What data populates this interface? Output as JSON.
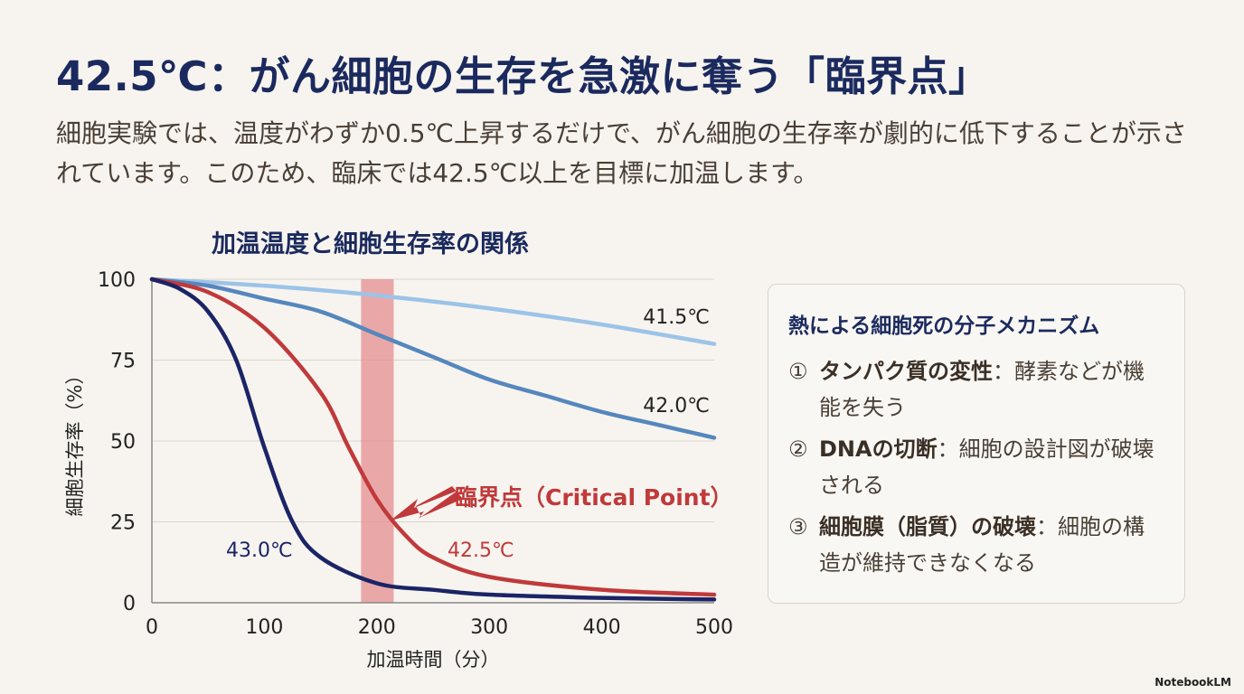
{
  "title": "42.5℃：がん細胞の生存を急激に奪う「臨界点」",
  "subtitle": "細胞実験では、温度がわずか0.5℃上昇するだけで、がん細胞の生存率が劇的に低下することが示されています。このため、臨床では42.5℃以上を目標に加温します。",
  "chart_data": {
    "type": "line",
    "title": "加温温度と細胞生存率の関係",
    "xlabel": "加温時間（分）",
    "ylabel": "細胞生存率（%）",
    "xlim": [
      0,
      500
    ],
    "ylim": [
      0,
      100
    ],
    "xticks": [
      "0",
      "100",
      "200",
      "300",
      "400",
      "500"
    ],
    "yticks": [
      "0",
      "25",
      "50",
      "75",
      "100"
    ],
    "grid": "horizontal",
    "series": [
      {
        "name": "41.5℃",
        "color": "#9cc3e8",
        "x": [
          0,
          100,
          200,
          300,
          400,
          500
        ],
        "y": [
          100,
          98,
          95,
          91,
          86,
          80
        ]
      },
      {
        "name": "42.0℃",
        "color": "#5587bd",
        "x": [
          0,
          50,
          100,
          150,
          200,
          250,
          300,
          350,
          400,
          450,
          500
        ],
        "y": [
          100,
          98,
          94,
          90,
          83,
          76,
          69,
          64,
          59,
          55,
          51
        ]
      },
      {
        "name": "42.5℃",
        "color": "#c0393b",
        "x": [
          0,
          50,
          100,
          150,
          175,
          200,
          225,
          250,
          300,
          400,
          500
        ],
        "y": [
          100,
          96,
          85,
          65,
          48,
          32,
          21,
          14,
          8,
          4,
          2.5
        ]
      },
      {
        "name": "43.0℃",
        "color": "#1b2466",
        "x": [
          0,
          25,
          50,
          75,
          100,
          125,
          150,
          200,
          250,
          300,
          400,
          500
        ],
        "y": [
          100,
          97,
          90,
          75,
          48,
          25,
          14,
          6,
          4,
          2.5,
          1.5,
          1
        ]
      }
    ],
    "annotation": {
      "label": "臨界点（Critical Point）",
      "x_range": [
        186,
        215
      ],
      "color": "#c0393b",
      "band_color": "#e58e90"
    }
  },
  "panel": {
    "title": "熱による細胞死の分子メカニズム",
    "items": [
      {
        "num": "①",
        "bold": "タンパク質の変性",
        "text": "：酵素などが機能を失う"
      },
      {
        "num": "②",
        "bold": "DNAの切断",
        "text": "：細胞の設計図が破壊される"
      },
      {
        "num": "③",
        "bold": "細胞膜（脂質）の破壊",
        "text": "：細胞の構造が維持できなくなる"
      }
    ]
  },
  "brand": "NotebookLM"
}
